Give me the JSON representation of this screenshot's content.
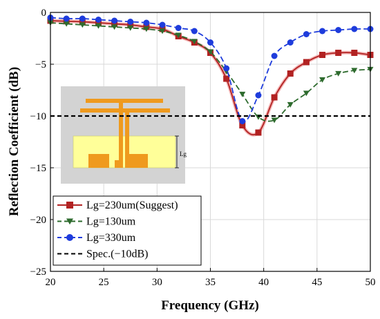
{
  "chart_data": {
    "type": "line",
    "title": "",
    "xlabel": "Frequency (GHz)",
    "ylabel": "Reflection Coefficient (dB)",
    "xlim": [
      20,
      50
    ],
    "ylim": [
      -25,
      0
    ],
    "xticks": [
      20,
      25,
      30,
      35,
      40,
      45,
      50
    ],
    "yticks": [
      0,
      -5,
      -10,
      -15,
      -20,
      -25
    ],
    "grid": true,
    "legend_position": "bottom-left",
    "series": [
      {
        "name": "Lg=230um(Suggest)",
        "color": "#b22222",
        "marker": "square",
        "linestyle": "solid",
        "x": [
          20,
          21.5,
          23,
          24.5,
          26,
          27.5,
          29,
          30.5,
          32,
          33.5,
          35,
          36.5,
          38,
          39.5,
          41,
          42.5,
          44,
          45.5,
          47,
          48.5,
          50
        ],
        "y": [
          -0.8,
          -0.85,
          -0.9,
          -1.0,
          -1.1,
          -1.2,
          -1.4,
          -1.6,
          -2.3,
          -2.9,
          -3.9,
          -6.4,
          -10.9,
          -11.6,
          -8.2,
          -5.9,
          -4.8,
          -4.1,
          -3.9,
          -3.9,
          -4.1
        ]
      },
      {
        "name": "Lg=130um",
        "color": "#2e6b2e",
        "marker": "triangle-down",
        "linestyle": "dashed",
        "x": [
          20,
          21.5,
          23,
          24.5,
          26,
          27.5,
          29,
          30.5,
          32,
          33.5,
          35,
          36.5,
          38,
          39.5,
          41,
          42.5,
          44,
          45.5,
          47,
          48.5,
          50
        ],
        "y": [
          -1.0,
          -1.1,
          -1.2,
          -1.3,
          -1.4,
          -1.5,
          -1.6,
          -1.8,
          -2.2,
          -2.8,
          -3.8,
          -5.7,
          -7.9,
          -10.1,
          -10.4,
          -8.9,
          -7.8,
          -6.5,
          -5.9,
          -5.6,
          -5.5
        ]
      },
      {
        "name": "Lg=330um",
        "color": "#1e3cdc",
        "marker": "circle",
        "linestyle": "dashed",
        "x": [
          20,
          21.5,
          23,
          24.5,
          26,
          27.5,
          29,
          30.5,
          32,
          33.5,
          35,
          36.5,
          38,
          39.5,
          41,
          42.5,
          44,
          45.5,
          47,
          48.5,
          50
        ],
        "y": [
          -0.5,
          -0.6,
          -0.6,
          -0.7,
          -0.8,
          -0.9,
          -1.0,
          -1.2,
          -1.5,
          -1.8,
          -2.9,
          -5.4,
          -10.5,
          -8.0,
          -4.2,
          -2.9,
          -2.1,
          -1.8,
          -1.7,
          -1.6,
          -1.6
        ]
      },
      {
        "name": "Spec.(−10dB)",
        "color": "#000000",
        "marker": "none",
        "linestyle": "dashed",
        "x": [
          20,
          50
        ],
        "y": [
          -10,
          -10
        ]
      }
    ],
    "inset_label": "Lg"
  }
}
